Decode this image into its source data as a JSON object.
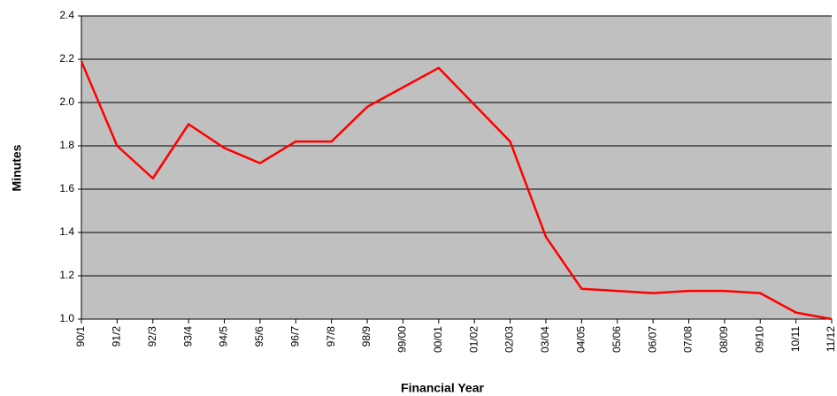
{
  "chart_data": {
    "type": "line",
    "x_label": "Financial Year",
    "y_label": "Minutes",
    "categories": [
      "90/1",
      "91/2",
      "92/3",
      "93/4",
      "94/5",
      "95/6",
      "96/7",
      "97/8",
      "98/9",
      "99/00",
      "00/01",
      "01/02",
      "02/03",
      "03/04",
      "04/05",
      "05/06",
      "06/07",
      "07/08",
      "08/09",
      "09/10",
      "10/11",
      "11/12"
    ],
    "series": [
      {
        "name": "Minutes",
        "color": "#ff0000",
        "values": [
          2.19,
          1.8,
          1.65,
          1.9,
          1.79,
          1.72,
          1.82,
          1.82,
          1.98,
          2.07,
          2.16,
          1.99,
          1.82,
          1.38,
          1.14,
          1.13,
          1.12,
          1.13,
          1.13,
          1.12,
          1.03,
          1.0
        ]
      }
    ],
    "ylim": [
      1,
      2.4
    ],
    "yticks": [
      {
        "value": 1,
        "label": "1.0"
      },
      1.2,
      1.4,
      1.6,
      1.8,
      {
        "value": 2,
        "label": "2.0"
      },
      2.2,
      2.4
    ],
    "grid": true,
    "background": "#c0c0c0"
  }
}
